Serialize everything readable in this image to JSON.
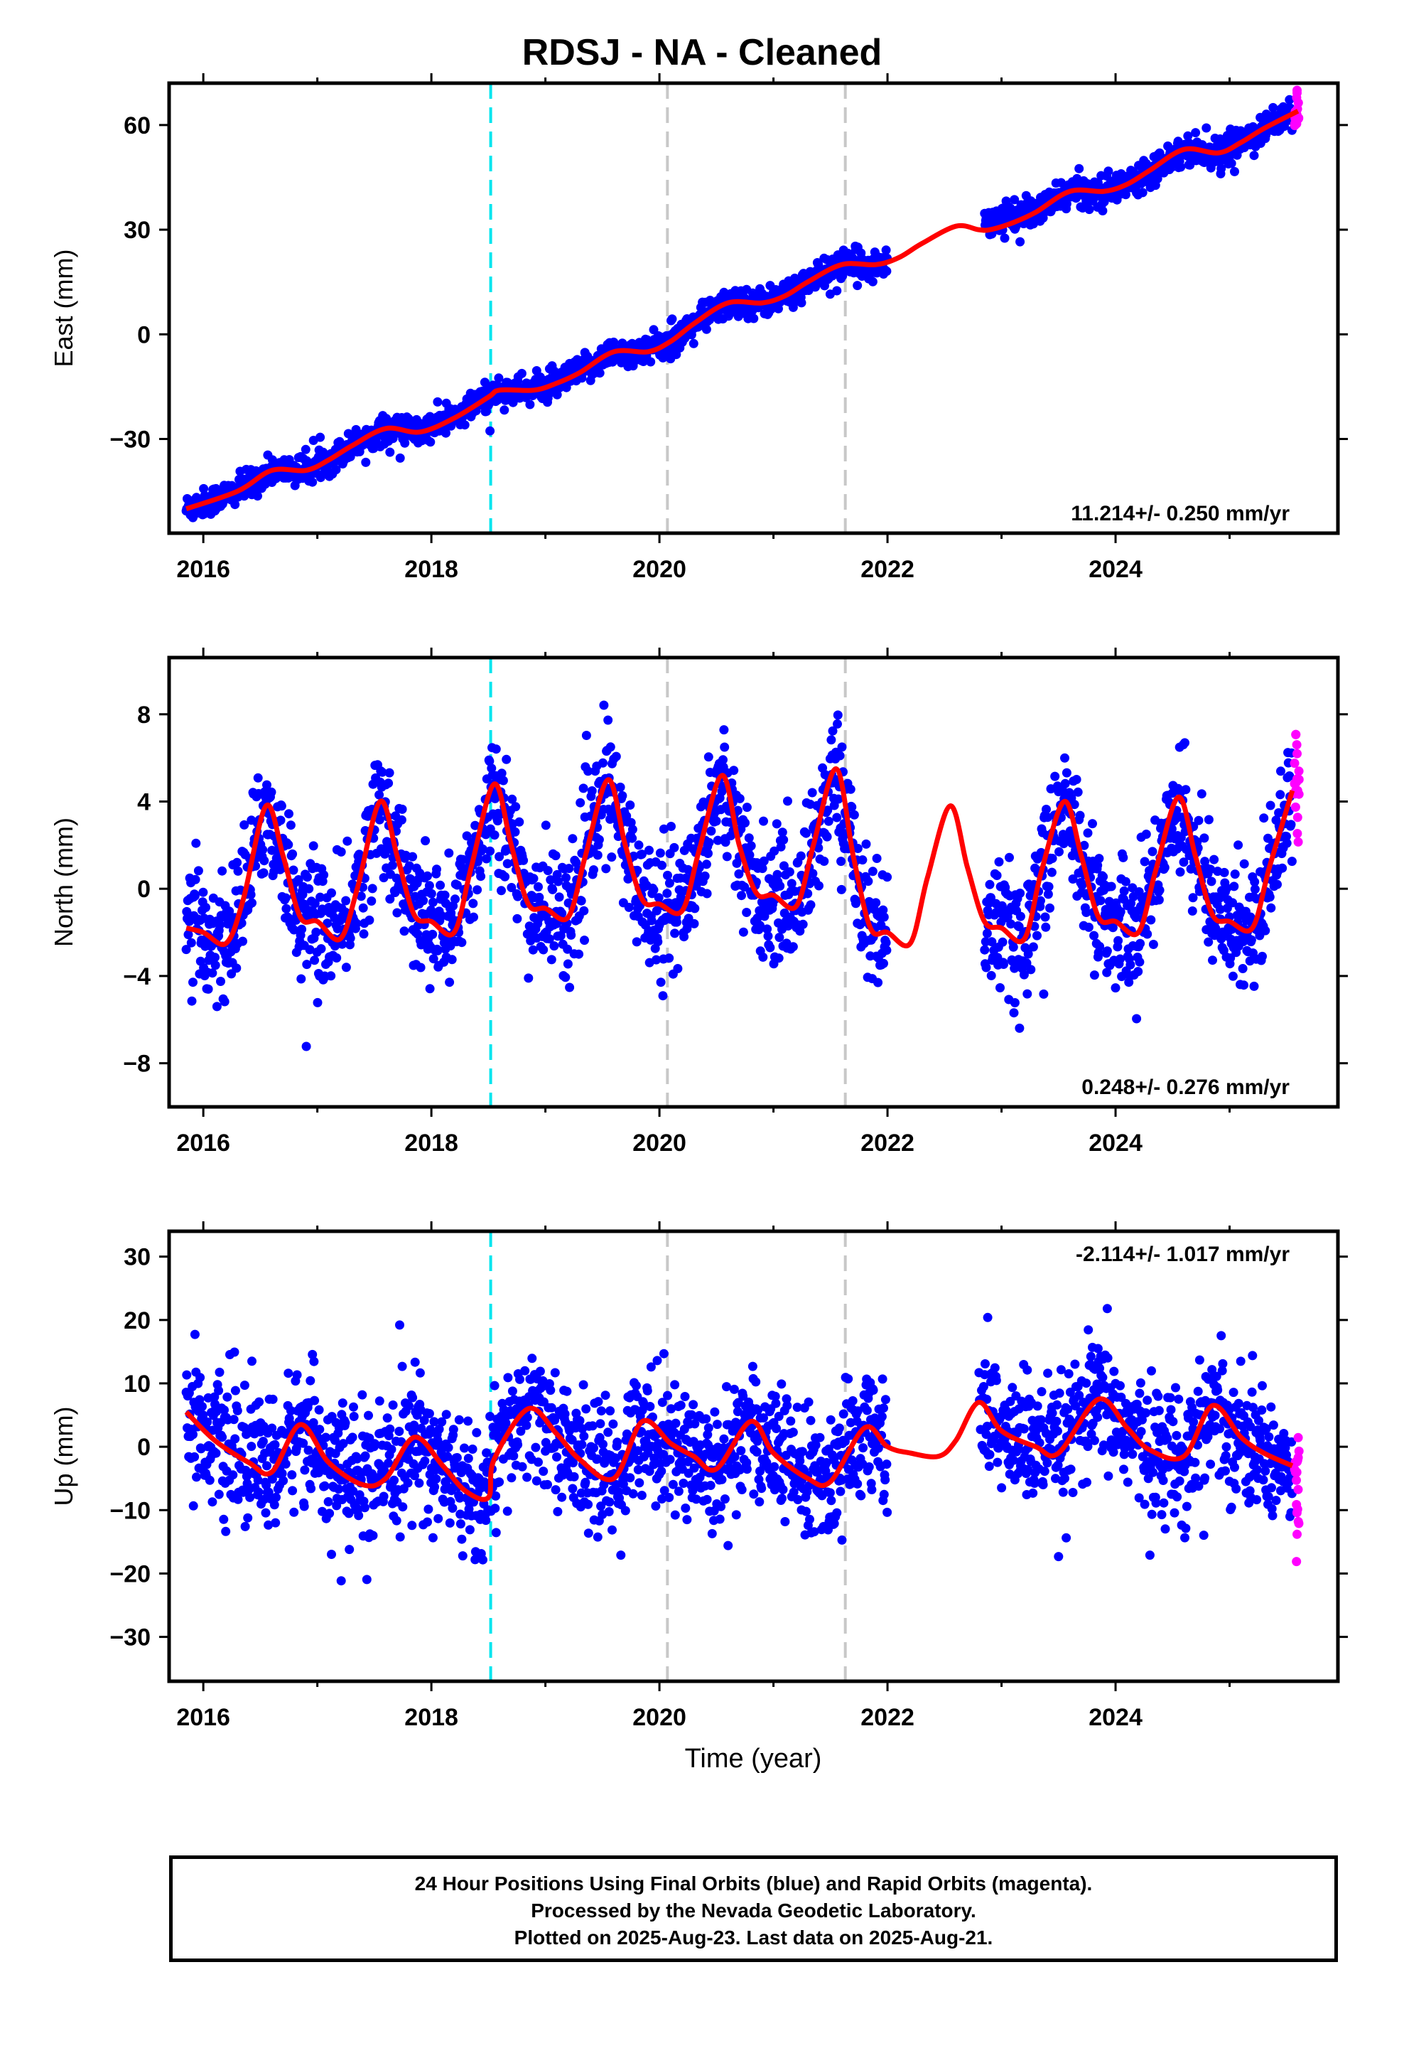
{
  "chart_data": {
    "type": "scatter",
    "title": "RDSJ  - NA - Cleaned",
    "xlabel": "Time (year)",
    "xlim": [
      2015.7,
      2025.95
    ],
    "x_ticks": [
      "2016",
      "2018",
      "2020",
      "2022",
      "2024"
    ],
    "event_lines": [
      {
        "x": 2018.52,
        "color": "#00e5ee",
        "style": "dashed"
      },
      {
        "x": 2020.07,
        "color": "#c8c8c8",
        "style": "dashed"
      },
      {
        "x": 2021.63,
        "color": "#c8c8c8",
        "style": "dashed"
      }
    ],
    "colors": {
      "final_orbits": "#0000ff",
      "rapid_orbits": "#ff00ff",
      "model": "#ff0000"
    },
    "panels": [
      {
        "name": "east",
        "ylabel": "East (mm)",
        "ylim": [
          -57,
          72
        ],
        "y_ticks": [
          "60",
          "30",
          "0",
          "−30"
        ],
        "y_tick_values": [
          60,
          30,
          0,
          -30
        ],
        "rate_label": "11.214+/- 0.250 mm/yr",
        "rate_position": "bottom-right",
        "model": {
          "x": [
            2015.85,
            2016.3,
            2016.6,
            2016.9,
            2017.1,
            2017.3,
            2017.6,
            2017.9,
            2018.2,
            2018.5,
            2018.6,
            2018.9,
            2019.1,
            2019.3,
            2019.6,
            2019.9,
            2020.1,
            2020.3,
            2020.6,
            2020.9,
            2021.1,
            2021.3,
            2021.6,
            2021.9,
            2022.1,
            2022.3,
            2022.6,
            2022.8,
            2022.9,
            2023.1,
            2023.3,
            2023.6,
            2023.9,
            2024.1,
            2024.3,
            2024.6,
            2024.9,
            2025.1,
            2025.3,
            2025.6
          ],
          "y": [
            -50,
            -45,
            -39,
            -39,
            -36,
            -32,
            -27,
            -28,
            -24,
            -18,
            -16,
            -16,
            -14,
            -11,
            -5,
            -5,
            -2,
            3,
            9,
            9,
            11,
            15,
            20,
            20,
            22,
            26,
            31,
            30,
            30,
            32,
            35,
            41,
            41,
            43,
            47,
            53,
            52,
            55,
            59,
            64
          ]
        },
        "data_summary": {
          "x_start": 2015.85,
          "x_end": 2025.55,
          "gap": [
            2022.0,
            2022.85
          ],
          "scatter_mm": 2.0,
          "offset_after_gap": 3.0
        }
      },
      {
        "name": "north",
        "ylabel": "North (mm)",
        "ylim": [
          -10,
          10.6
        ],
        "y_ticks": [
          "8",
          "4",
          "0",
          "−4",
          "−8"
        ],
        "y_tick_values": [
          8,
          4,
          0,
          -4,
          -8
        ],
        "rate_label": "0.248+/- 0.276 mm/yr",
        "rate_position": "bottom-right",
        "model": {
          "x": [
            2015.85,
            2016.0,
            2016.2,
            2016.35,
            2016.55,
            2016.7,
            2016.85,
            2017.0,
            2017.2,
            2017.35,
            2017.55,
            2017.7,
            2017.85,
            2018.0,
            2018.2,
            2018.35,
            2018.55,
            2018.7,
            2018.85,
            2019.0,
            2019.2,
            2019.35,
            2019.55,
            2019.7,
            2019.85,
            2020.0,
            2020.2,
            2020.35,
            2020.55,
            2020.7,
            2020.85,
            2021.0,
            2021.2,
            2021.35,
            2021.55,
            2021.7,
            2021.85,
            2022.0,
            2022.2,
            2022.35,
            2022.55,
            2022.7,
            2022.85,
            2023.0,
            2023.2,
            2023.35,
            2023.55,
            2023.7,
            2023.85,
            2024.0,
            2024.2,
            2024.35,
            2024.55,
            2024.7,
            2024.85,
            2025.0,
            2025.2,
            2025.35,
            2025.55
          ],
          "y": [
            -1.8,
            -2.0,
            -2.5,
            -0.5,
            3.8,
            1.5,
            -1.3,
            -1.5,
            -2.3,
            0.0,
            4.0,
            1.5,
            -1.2,
            -1.5,
            -2.0,
            1.0,
            4.8,
            2.0,
            -0.7,
            -0.9,
            -1.3,
            1.5,
            5.0,
            2.0,
            -0.5,
            -0.7,
            -1.0,
            1.8,
            5.2,
            2.0,
            -0.2,
            -0.3,
            -0.8,
            2.0,
            5.5,
            1.5,
            -1.8,
            -2.0,
            -2.5,
            0.5,
            3.8,
            1.0,
            -1.5,
            -1.8,
            -2.3,
            0.8,
            4.0,
            1.5,
            -1.3,
            -1.5,
            -2.0,
            0.8,
            4.2,
            1.5,
            -1.2,
            -1.5,
            -1.8,
            1.0,
            4.5
          ]
        },
        "data_summary": {
          "x_start": 2015.85,
          "x_end": 2025.55,
          "gap": [
            2022.0,
            2022.85
          ],
          "scatter_mm": 1.4
        }
      },
      {
        "name": "up",
        "ylabel": "Up (mm)",
        "ylim": [
          -37,
          34
        ],
        "y_ticks": [
          "30",
          "20",
          "10",
          "0",
          "−10",
          "−20",
          "−30"
        ],
        "y_tick_values": [
          30,
          20,
          10,
          0,
          -10,
          -20,
          -30
        ],
        "rate_label": "-2.114+/- 1.017 mm/yr",
        "rate_position": "top-right",
        "model": {
          "x": [
            2015.85,
            2016.1,
            2016.4,
            2016.6,
            2016.85,
            2017.1,
            2017.4,
            2017.6,
            2017.85,
            2018.1,
            2018.3,
            2018.5,
            2018.55,
            2018.85,
            2019.1,
            2019.3,
            2019.6,
            2019.85,
            2020.1,
            2020.3,
            2020.5,
            2020.8,
            2021.0,
            2021.3,
            2021.5,
            2021.8,
            2022.0,
            2022.2,
            2022.45,
            2022.6,
            2022.8,
            2023.0,
            2023.3,
            2023.5,
            2023.85,
            2024.1,
            2024.3,
            2024.6,
            2024.85,
            2025.1,
            2025.3,
            2025.55
          ],
          "y": [
            5.5,
            1.0,
            -2.5,
            -4.0,
            3.5,
            -2.5,
            -6.0,
            -5.0,
            1.5,
            -3.0,
            -7.0,
            -8.0,
            -2.0,
            6.0,
            2.0,
            -2.0,
            -5.0,
            4.0,
            0.5,
            -1.5,
            -3.5,
            4.0,
            -1.0,
            -5.0,
            -5.5,
            3.0,
            0.0,
            -1.0,
            -1.5,
            1.0,
            7.0,
            2.5,
            0.0,
            -1.0,
            7.5,
            3.0,
            -0.5,
            -1.5,
            6.5,
            1.5,
            -1.0,
            -3.0
          ]
        },
        "data_summary": {
          "x_start": 2015.85,
          "x_end": 2025.55,
          "gap": [
            2022.0,
            2022.8
          ],
          "scatter_mm": 5.0
        }
      }
    ]
  },
  "footer": {
    "line1": "24 Hour Positions Using Final Orbits (blue) and Rapid Orbits (magenta).",
    "line2": "Processed by the Nevada Geodetic Laboratory.",
    "line3": "Plotted on 2025-Aug-23. Last data on 2025-Aug-21."
  }
}
